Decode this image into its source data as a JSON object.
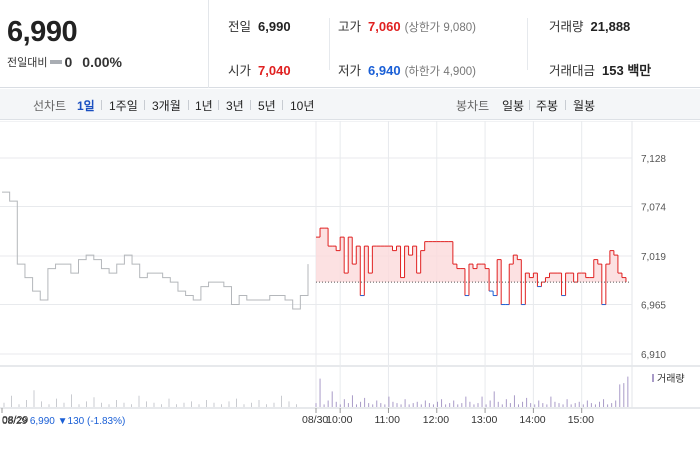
{
  "quote": {
    "price": "6,990",
    "change_label": "전일대비",
    "change_value": "0",
    "change_pct": "0.00%"
  },
  "stats": {
    "prev_close": {
      "label": "전일",
      "value": "6,990"
    },
    "open": {
      "label": "시가",
      "value": "7,040"
    },
    "high": {
      "label": "고가",
      "value": "7,060",
      "limit": "(상한가 9,080)"
    },
    "low": {
      "label": "저가",
      "value": "6,940",
      "limit": "(하한가 4,900)"
    },
    "volume": {
      "label": "거래량",
      "value": "21,888"
    },
    "amount": {
      "label": "거래대금",
      "value": "153 백만"
    }
  },
  "toolbar": {
    "line_label": "선차트",
    "line_periods": [
      "1일",
      "1주일",
      "3개월",
      "1년",
      "3년",
      "5년",
      "10년"
    ],
    "candle_label": "봉차트",
    "candle_periods": [
      "일봉",
      "주봉",
      "월봉"
    ]
  },
  "status": {
    "date": "08/29",
    "price": "6,990",
    "change": "▼130 (-1.83%)"
  },
  "colors": {
    "up": "#e02020",
    "down": "#1a5fd6",
    "prev": "#b4b7bb",
    "grid": "#e8eaed"
  },
  "chart_data": {
    "type": "line",
    "y_ticks": [
      "7,128",
      "6,910"
    ],
    "y_tick_values": [
      7128,
      7074,
      7019,
      6965,
      6910
    ],
    "y_tick_labels": [
      "7,128",
      "7,074",
      "7,019",
      "6,965",
      "6,910"
    ],
    "ylim": [
      6910,
      7128
    ],
    "baseline": 6990,
    "x_tick_labels": [
      "08/29",
      "08/30",
      "10:00",
      "11:00",
      "12:00",
      "13:00",
      "14:00",
      "15:00"
    ],
    "volume_legend": "거래량",
    "prev_day": {
      "name": "08/29",
      "t": [
        0,
        3,
        6,
        9,
        12,
        15,
        18,
        21,
        24,
        27,
        30,
        33,
        36,
        39,
        42,
        45,
        48,
        51,
        54,
        57,
        60,
        63,
        66,
        69,
        72,
        75,
        78,
        81,
        84,
        87,
        90,
        93,
        96,
        99,
        102,
        105,
        108,
        111,
        114,
        117,
        120
      ],
      "values": [
        7090,
        7080,
        7010,
        6995,
        6980,
        6970,
        7005,
        7010,
        7010,
        7000,
        7015,
        7020,
        7015,
        7005,
        7000,
        7010,
        7020,
        7010,
        6995,
        7000,
        7000,
        6995,
        6990,
        6980,
        6975,
        6970,
        6985,
        6990,
        6990,
        6985,
        6965,
        6975,
        6970,
        6970,
        6970,
        6975,
        6975,
        6970,
        6960,
        6975,
        7010
      ]
    },
    "today": {
      "name": "08/30",
      "t": [
        0,
        4,
        8,
        12,
        16,
        20,
        24,
        28,
        32,
        36,
        40,
        44,
        48,
        52,
        56,
        60,
        64,
        68,
        72,
        76,
        80,
        84,
        88,
        92,
        96,
        100,
        104,
        108,
        112,
        116,
        120,
        124,
        128,
        132,
        136,
        140,
        144,
        148,
        152,
        156,
        160,
        164,
        168,
        172,
        176,
        180,
        184,
        188,
        192,
        196,
        200,
        204,
        208,
        212,
        216,
        220,
        224,
        228,
        232,
        236,
        240,
        244,
        248,
        252,
        256,
        260,
        264,
        268,
        272,
        276,
        280,
        284,
        288,
        292,
        296,
        300,
        304,
        308
      ],
      "values": [
        7040,
        7050,
        7050,
        7030,
        7030,
        7025,
        7040,
        7000,
        7040,
        7010,
        7030,
        6975,
        7030,
        7000,
        7030,
        7030,
        7030,
        7030,
        7030,
        7025,
        7030,
        6995,
        7030,
        7020,
        7030,
        7000,
        7025,
        7035,
        7035,
        7035,
        7035,
        7035,
        7035,
        7035,
        7010,
        7005,
        7005,
        6975,
        7010,
        7005,
        7010,
        7010,
        7005,
        6980,
        6975,
        7015,
        6965,
        6965,
        7010,
        7020,
        7015,
        6965,
        7000,
        6995,
        7000,
        6985,
        6990,
        6995,
        7000,
        7000,
        7000,
        6975,
        7000,
        7000,
        6990,
        7000,
        7000,
        6995,
        6995,
        7015,
        7010,
        6965,
        7010,
        7025,
        7020,
        7000,
        6995,
        6990
      ]
    }
  }
}
